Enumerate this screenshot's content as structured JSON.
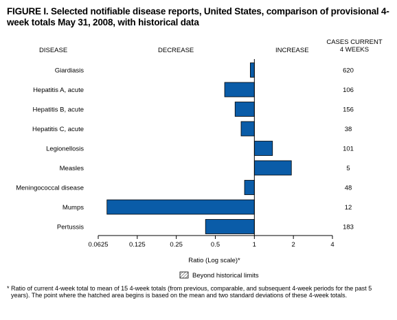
{
  "title": "FIGURE I. Selected notifiable disease reports, United States, comparison of provisional 4-week totals May 31, 2008, with historical data",
  "headers": {
    "disease": "DISEASE",
    "decrease": "DECREASE",
    "increase": "INCREASE",
    "cases_line1": "CASES CURRENT",
    "cases_line2": "4 WEEKS"
  },
  "legend": {
    "label": "Beyond historical limits",
    "pattern": "hatched"
  },
  "footnote": {
    "marker": "*",
    "text": "Ratio of current 4-week total to mean of 15 4-week totals (from previous, comparable, and subsequent 4-week periods for the past 5 years). The point where the hatched area begins is based on the mean and two standard deviations of these 4-week totals."
  },
  "chart_data": {
    "type": "bar",
    "orientation": "horizontal",
    "x_scale": "log2",
    "xlabel": "Ratio (Log scale)*",
    "xlim": [
      0.0625,
      4
    ],
    "baseline": 1,
    "x_ticks": [
      0.0625,
      0.125,
      0.25,
      0.5,
      1,
      2,
      4
    ],
    "x_tick_labels": [
      "0.0625",
      "0.125",
      "0.25",
      "0.5",
      "1",
      "2",
      "4"
    ],
    "bar_color": "#0a5ca8",
    "categories": [
      "Giardiasis",
      "Hepatitis A, acute",
      "Hepatitis B, acute",
      "Hepatitis C, acute",
      "Legionellosis",
      "Measles",
      "Meningococcal disease",
      "Mumps",
      "Pertussis"
    ],
    "values": [
      0.93,
      0.59,
      0.71,
      0.79,
      1.38,
      1.93,
      0.84,
      0.073,
      0.42
    ],
    "cases": [
      "620",
      "106",
      "156",
      "38",
      "101",
      "5",
      "48",
      "12",
      "183"
    ]
  }
}
